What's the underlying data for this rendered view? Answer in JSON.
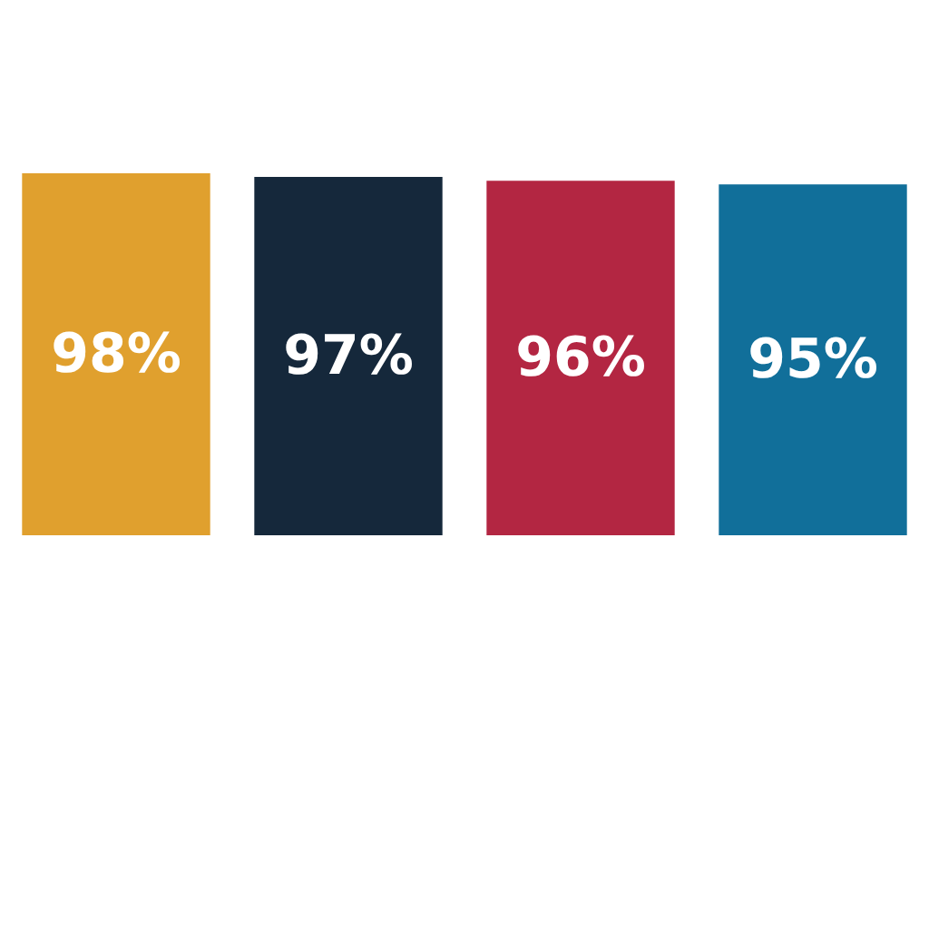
{
  "chart_data": {
    "type": "bar",
    "categories": [
      null,
      null,
      null,
      null
    ],
    "values": [
      98,
      97,
      96,
      95
    ],
    "colors": [
      "#e0a02e",
      "#15283b",
      "#b32642",
      "#116f9a"
    ],
    "value_labels": [
      "98%",
      "97%",
      "96%",
      "95%"
    ],
    "tick_labels": false,
    "legend": false
  }
}
